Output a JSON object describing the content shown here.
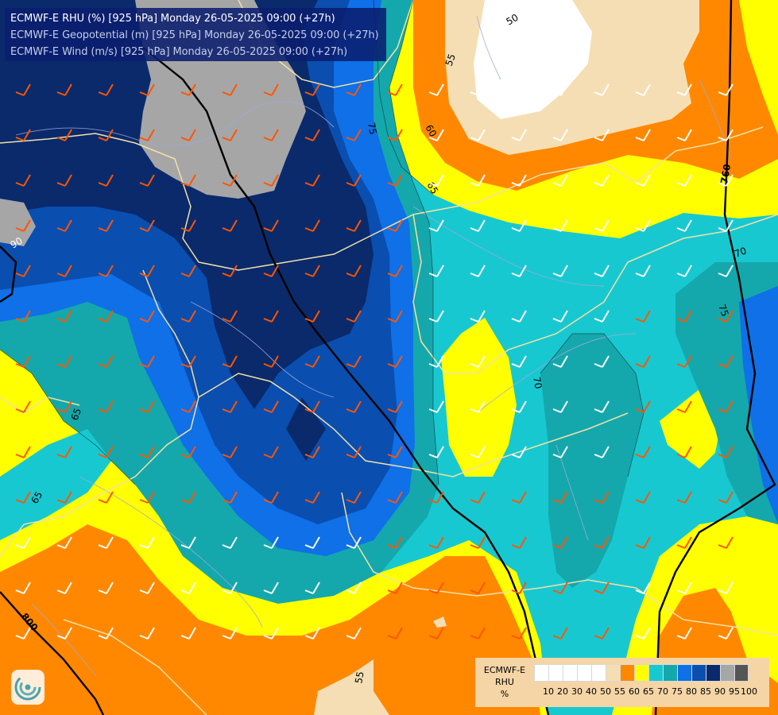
{
  "title": {
    "line1": "ECMWF-E RHU (%) [925 hPa] Monday 26-05-2025 09:00 (+27h)",
    "line2": "ECMWF-E Geopotential (m) [925 hPa] Monday 26-05-2025 09:00 (+27h)",
    "line3": "ECMWF-E Wind (m/s) [925 hPa] Monday 26-05-2025 09:00 (+27h)"
  },
  "contour_labels": {
    "rh": [
      "50",
      "55",
      "60",
      "65",
      "70",
      "75",
      "90"
    ],
    "geopotential": [
      "760",
      "800"
    ]
  },
  "legend": {
    "label_line1": "ECMWF-E",
    "label_line2": "RHU",
    "unit": "%",
    "ticks": [
      "10",
      "20",
      "30",
      "40",
      "50",
      "55",
      "60",
      "65",
      "70",
      "75",
      "80",
      "85",
      "90",
      "95",
      "100"
    ],
    "colors": [
      "#ffffff",
      "#ffffff",
      "#ffffff",
      "#ffffff",
      "#ffffff",
      "#f5deb3",
      "#ff8800",
      "#ffff00",
      "#18c8d0",
      "#14a8ac",
      "#0f70e8",
      "#0a4eb0",
      "#0a2a6c",
      "#a6a6a6",
      "#555555"
    ]
  },
  "colors": {
    "rh_50": "#ffffff",
    "rh_55": "#f5deb3",
    "rh_60": "#ff8800",
    "rh_65": "#ffff00",
    "rh_70": "#18c8d0",
    "rh_75": "#14a8ac",
    "rh_80": "#0f70e8",
    "rh_85": "#0a4eb0",
    "rh_90": "#0a2a6c",
    "rh_95": "#a6a6a6",
    "wind_barb_strong": "#ff5500",
    "wind_barb_light": "#ffffff",
    "border": "#f2e0a8",
    "river": "#a0a8d8"
  },
  "logo_icon": "ecmwf-swirl-icon"
}
